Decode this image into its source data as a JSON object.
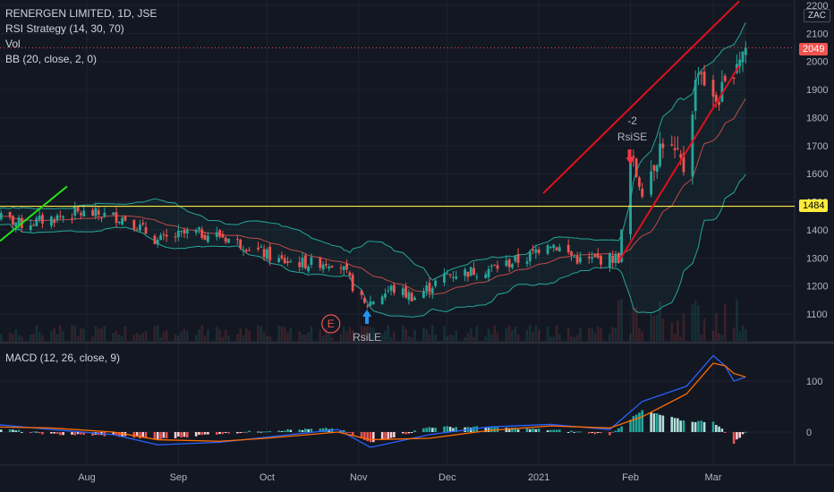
{
  "header": {
    "title": "RENERGEN LIMITED, 1D, JSE",
    "indicators": [
      "RSI Strategy (14, 30, 70)",
      "Vol",
      "BB (20, close, 2, 0)"
    ],
    "currency": "ZAC"
  },
  "macd": {
    "label": "MACD (12, 26, close, 9)"
  },
  "price_labels": {
    "last": "2049",
    "hline": "1484"
  },
  "colors": {
    "up": "#26a69a",
    "down": "#ef5350",
    "bb": "#26a69a",
    "bb_mid": "#ef5350",
    "channel": "#e0101e",
    "green_line": "#22e018",
    "hline": "#ffeb3b",
    "macd": "#2962ff",
    "signal": "#ff6d00",
    "last_badge": "#ef5350",
    "hline_badge": "#ffeb3b"
  },
  "chart_data": [
    {
      "type": "candlestick",
      "title": "RENERGEN LIMITED, 1D, JSE",
      "y_ticks": [
        1100,
        1200,
        1300,
        1400,
        1500,
        1600,
        1700,
        1800,
        1900,
        2000,
        2100,
        2200
      ],
      "x_ticks": [
        "Aug",
        "Sep",
        "Oct",
        "Nov",
        "Dec",
        "2021",
        "Feb",
        "Mar"
      ],
      "ylim": [
        1020,
        2215
      ],
      "horizontal_line": 1484,
      "last_price": 2049,
      "markers": [
        {
          "label": "-2",
          "sub": "RsiSE",
          "date": "2021-02-01",
          "price": 1610,
          "direction": "down"
        },
        {
          "label": "RsiLE",
          "date": "2020-11-02",
          "price": 1110,
          "direction": "up"
        },
        {
          "label": "E",
          "date": "2020-10-22",
          "price": 1085
        }
      ],
      "close_path": [
        [
          "2020-07-01",
          1450
        ],
        [
          "2020-07-10",
          1420
        ],
        [
          "2020-07-20",
          1440
        ],
        [
          "2020-07-28",
          1460
        ],
        [
          "2020-08-05",
          1455
        ],
        [
          "2020-08-15",
          1440
        ],
        [
          "2020-08-25",
          1360
        ],
        [
          "2020-09-05",
          1390
        ],
        [
          "2020-09-15",
          1380
        ],
        [
          "2020-09-25",
          1340
        ],
        [
          "2020-10-05",
          1290
        ],
        [
          "2020-10-15",
          1280
        ],
        [
          "2020-10-25",
          1290
        ],
        [
          "2020-11-03",
          1130
        ],
        [
          "2020-11-12",
          1190
        ],
        [
          "2020-11-20",
          1160
        ],
        [
          "2020-12-01",
          1240
        ],
        [
          "2020-12-15",
          1260
        ],
        [
          "2020-12-28",
          1300
        ],
        [
          "2021-01-04",
          1360
        ],
        [
          "2021-01-15",
          1290
        ],
        [
          "2021-01-28",
          1300
        ],
        [
          "2021-02-01",
          1650
        ],
        [
          "2021-02-05",
          1540
        ],
        [
          "2021-02-12",
          1720
        ],
        [
          "2021-02-19",
          1620
        ],
        [
          "2021-02-24",
          1990
        ],
        [
          "2021-03-01",
          1850
        ],
        [
          "2021-03-05",
          1900
        ],
        [
          "2021-03-09",
          2010
        ],
        [
          "2021-03-12",
          2049
        ]
      ]
    },
    {
      "type": "line",
      "title": "MACD (12, 26, close, 9)",
      "y_ticks": [
        0,
        100
      ],
      "ylim": [
        -60,
        170
      ],
      "series": [
        {
          "values": [
            [
              "2020-07-01",
              15
            ],
            [
              "2020-07-20",
              5
            ],
            [
              "2020-08-10",
              -5
            ],
            [
              "2020-08-25",
              -25
            ],
            [
              "2020-09-15",
              -20
            ],
            [
              "2020-10-01",
              -10
            ],
            [
              "2020-10-25",
              5
            ],
            [
              "2020-11-05",
              -30
            ],
            [
              "2020-11-25",
              -5
            ],
            [
              "2020-12-15",
              10
            ],
            [
              "2021-01-05",
              15
            ],
            [
              "2021-01-25",
              5
            ],
            [
              "2021-02-05",
              60
            ],
            [
              "2021-02-20",
              90
            ],
            [
              "2021-03-01",
              150
            ],
            [
              "2021-03-05",
              130
            ],
            [
              "2021-03-08",
              100
            ],
            [
              "2021-03-12",
              108
            ]
          ]
        },
        {
          "values": [
            [
              "2020-07-01",
              10
            ],
            [
              "2020-07-20",
              8
            ],
            [
              "2020-08-10",
              0
            ],
            [
              "2020-08-25",
              -15
            ],
            [
              "2020-09-15",
              -18
            ],
            [
              "2020-10-01",
              -12
            ],
            [
              "2020-10-25",
              0
            ],
            [
              "2020-11-05",
              -15
            ],
            [
              "2020-11-25",
              -12
            ],
            [
              "2020-12-15",
              3
            ],
            [
              "2021-01-05",
              12
            ],
            [
              "2021-01-25",
              8
            ],
            [
              "2021-02-05",
              30
            ],
            [
              "2021-02-20",
              75
            ],
            [
              "2021-03-01",
              135
            ],
            [
              "2021-03-05",
              130
            ],
            [
              "2021-03-08",
              115
            ],
            [
              "2021-03-12",
              108
            ]
          ]
        }
      ]
    }
  ]
}
